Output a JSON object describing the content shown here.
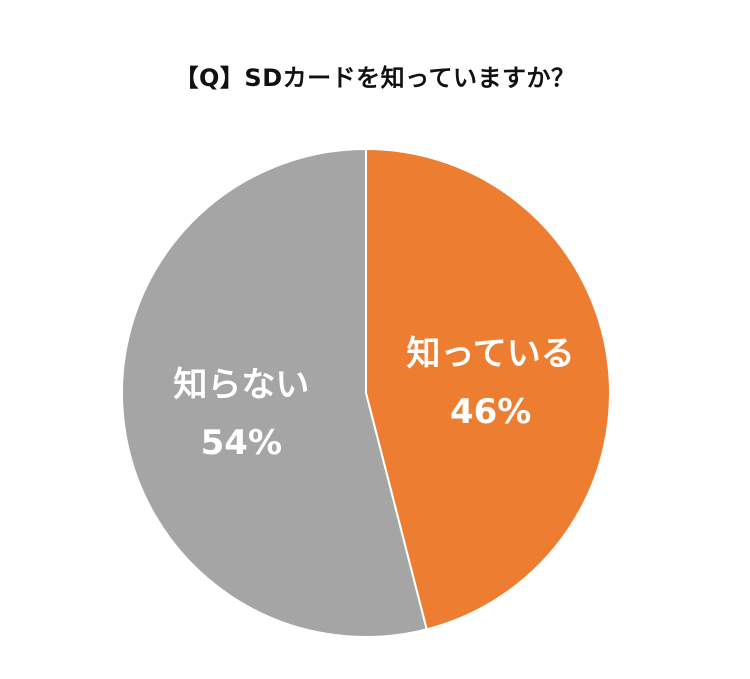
{
  "chart_data": {
    "type": "pie",
    "title": "【Q】SDカードを知っていますか？",
    "slices": [
      {
        "label": "知っている",
        "value": 46,
        "value_label": "46%",
        "color": "#ED7D31"
      },
      {
        "label": "知らない",
        "value": 54,
        "value_label": "54%",
        "color": "#A5A5A5"
      }
    ],
    "start": "12 o'clock",
    "direction": "clockwise",
    "legend": "none",
    "slice_border_color": "#FFFFFF"
  }
}
